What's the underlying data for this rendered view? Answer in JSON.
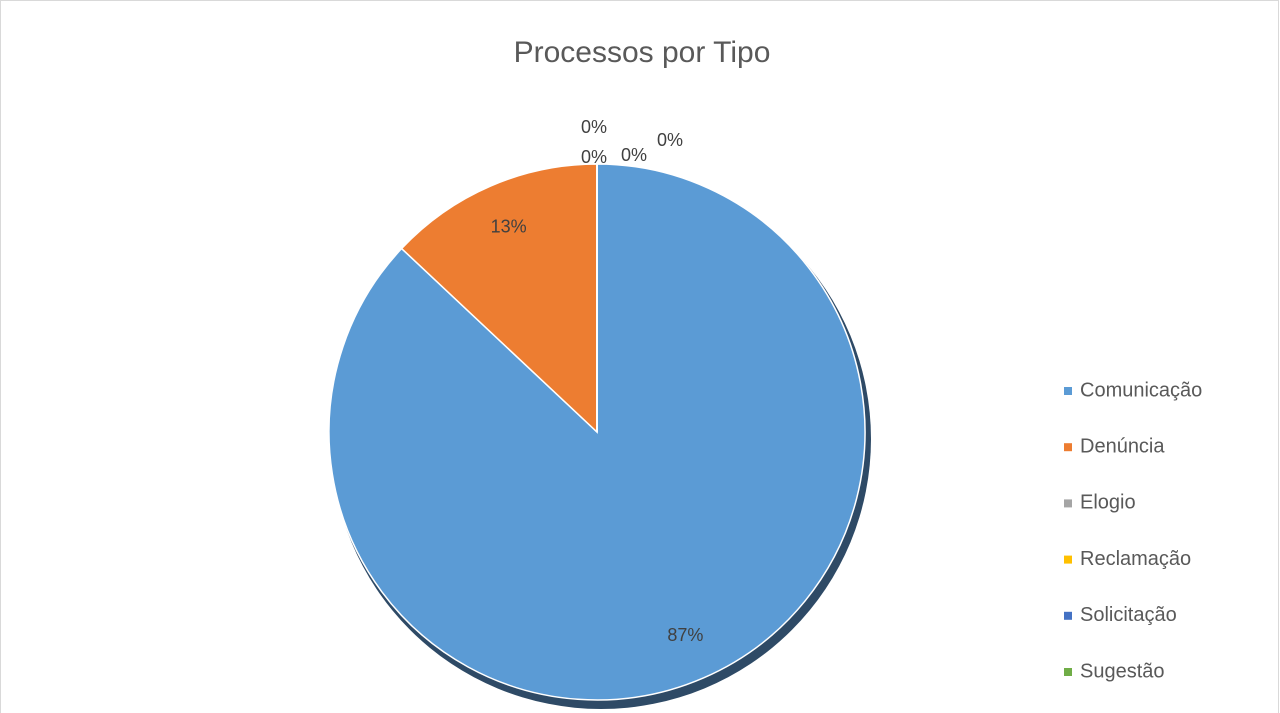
{
  "chart_data": {
    "type": "pie",
    "title": "Processos por Tipo",
    "categories": [
      "Comunicação",
      "Denúncia",
      "Elogio",
      "Reclamação",
      "Solicitação",
      "Sugestão"
    ],
    "values": [
      87,
      13,
      0,
      0,
      0,
      0
    ],
    "value_labels": [
      "87%",
      "13%",
      "0%",
      "0%",
      "0%",
      "0%"
    ],
    "colors": [
      "#5b9bd5",
      "#ed7d31",
      "#a5a5a5",
      "#ffc000",
      "#4472c4",
      "#70ad47"
    ],
    "legend": "right"
  }
}
